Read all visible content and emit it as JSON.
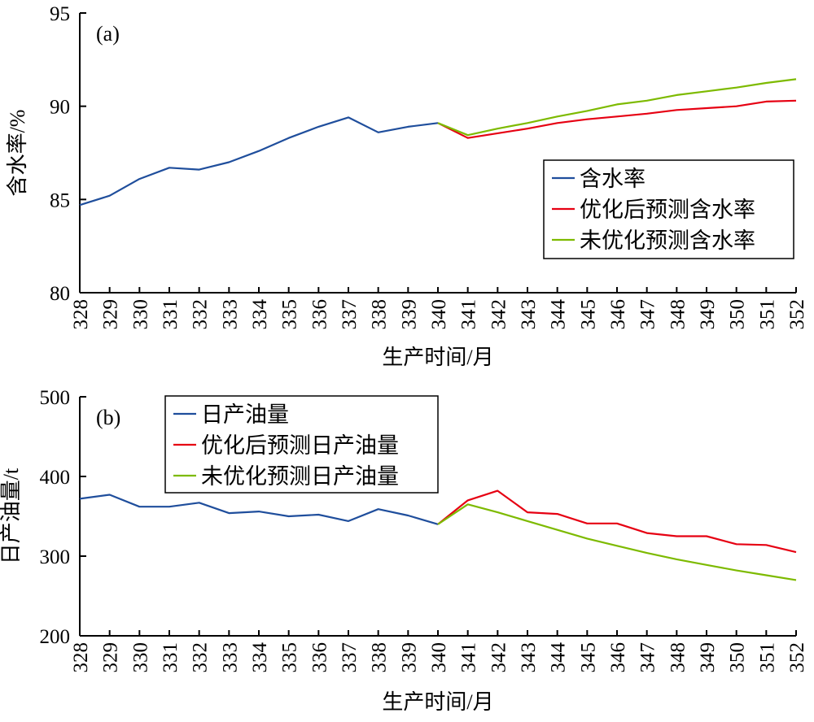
{
  "chart_data": [
    {
      "type": "line",
      "panel_label": "(a)",
      "xlabel": "生产时间/月",
      "ylabel": "含水率/%",
      "xlim": [
        328,
        352
      ],
      "ylim": [
        80,
        95
      ],
      "yticks": [
        80,
        85,
        90,
        95
      ],
      "xticks": [
        328,
        329,
        330,
        331,
        332,
        333,
        334,
        335,
        336,
        337,
        338,
        339,
        340,
        341,
        342,
        343,
        344,
        345,
        346,
        347,
        348,
        349,
        350,
        351,
        352
      ],
      "grid": false,
      "legend_position": "center-right",
      "series": [
        {
          "name": "含水率",
          "color": "#1f4e9c",
          "x": [
            328,
            329,
            330,
            331,
            332,
            333,
            334,
            335,
            336,
            337,
            338,
            339,
            340
          ],
          "y": [
            84.7,
            85.2,
            86.1,
            86.7,
            86.6,
            87.0,
            87.6,
            88.3,
            88.9,
            89.4,
            88.6,
            88.9,
            89.1
          ]
        },
        {
          "name": "优化后预测含水率",
          "color": "#e60012",
          "x": [
            340,
            341,
            342,
            343,
            344,
            345,
            346,
            347,
            348,
            349,
            350,
            351,
            352
          ],
          "y": [
            89.1,
            88.3,
            88.55,
            88.8,
            89.1,
            89.3,
            89.45,
            89.6,
            89.8,
            89.9,
            90.0,
            90.25,
            90.3
          ]
        },
        {
          "name": "未优化预测含水率",
          "color": "#7dba00",
          "x": [
            340,
            341,
            342,
            343,
            344,
            345,
            346,
            347,
            348,
            349,
            350,
            351,
            352
          ],
          "y": [
            89.1,
            88.45,
            88.8,
            89.1,
            89.45,
            89.75,
            90.1,
            90.3,
            90.6,
            90.8,
            91.0,
            91.25,
            91.45
          ]
        }
      ]
    },
    {
      "type": "line",
      "panel_label": "(b)",
      "xlabel": "生产时间/月",
      "ylabel": "日产油量/t",
      "xlim": [
        328,
        352
      ],
      "ylim": [
        200,
        500
      ],
      "yticks": [
        200,
        300,
        400,
        500
      ],
      "xticks": [
        328,
        329,
        330,
        331,
        332,
        333,
        334,
        335,
        336,
        337,
        338,
        339,
        340,
        341,
        342,
        343,
        344,
        345,
        346,
        347,
        348,
        349,
        350,
        351,
        352
      ],
      "grid": false,
      "legend_position": "top-left",
      "series": [
        {
          "name": "日产油量",
          "color": "#1f4e9c",
          "x": [
            328,
            329,
            330,
            331,
            332,
            333,
            334,
            335,
            336,
            337,
            338,
            339,
            340
          ],
          "y": [
            372,
            377,
            362,
            362,
            367,
            354,
            356,
            350,
            352,
            344,
            359,
            351,
            340
          ]
        },
        {
          "name": "优化后预测日产油量",
          "color": "#e60012",
          "x": [
            340,
            341,
            342,
            343,
            344,
            345,
            346,
            347,
            348,
            349,
            350,
            351,
            352
          ],
          "y": [
            340,
            370,
            382,
            355,
            353,
            341,
            341,
            329,
            325,
            325,
            315,
            314,
            305
          ]
        },
        {
          "name": "未优化预测日产油量",
          "color": "#7dba00",
          "x": [
            340,
            341,
            342,
            343,
            344,
            345,
            346,
            347,
            348,
            349,
            350,
            351,
            352
          ],
          "y": [
            340,
            365,
            355,
            344,
            333,
            322,
            313,
            304,
            296,
            289,
            282,
            276,
            270
          ]
        }
      ]
    }
  ]
}
